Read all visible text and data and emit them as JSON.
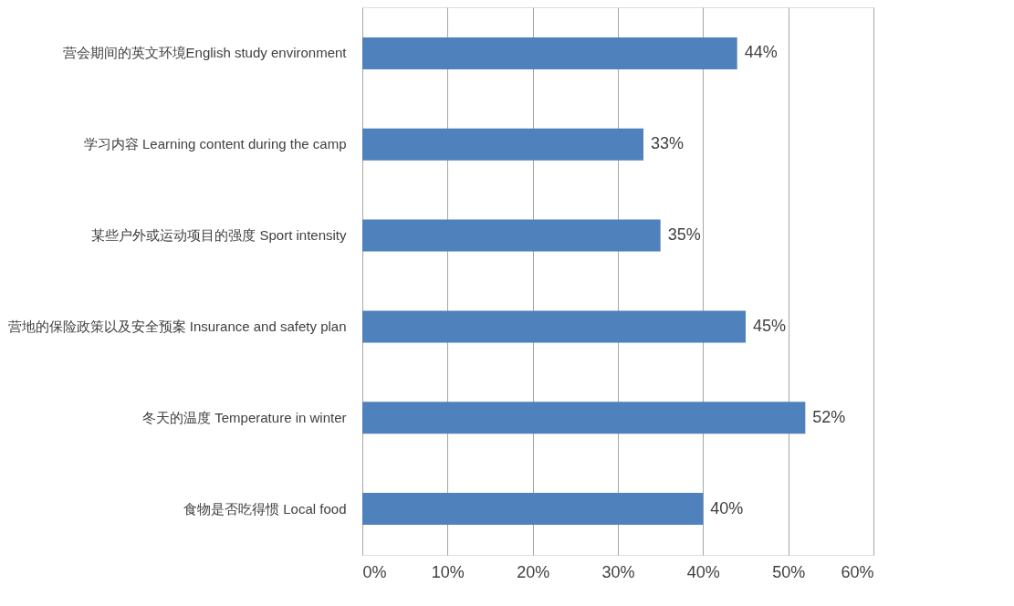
{
  "chart_data": {
    "type": "bar",
    "orientation": "horizontal",
    "categories": [
      "营会期间的英文环境English study environment",
      "学习内容 Learning content during the camp",
      "某些户外或运动项目的强度 Sport intensity",
      "营地的保险政策以及安全预案 Insurance and safety plan",
      "冬天的温度 Temperature in winter",
      "食物是否吃得惯 Local food"
    ],
    "values": [
      44,
      33,
      35,
      45,
      52,
      40
    ],
    "value_labels": [
      "44%",
      "33%",
      "35%",
      "45%",
      "52%",
      "40%"
    ],
    "color": "#4f81bd",
    "xlim": [
      0,
      60
    ],
    "xticks": [
      {
        "value": 0,
        "label": "0%"
      },
      {
        "value": 10,
        "label": "10%"
      },
      {
        "value": 20,
        "label": "20%"
      },
      {
        "value": 30,
        "label": "30%"
      },
      {
        "value": 40,
        "label": "40%"
      },
      {
        "value": 50,
        "label": "50%"
      },
      {
        "value": 60,
        "label": "60%"
      }
    ],
    "grid": "x"
  }
}
